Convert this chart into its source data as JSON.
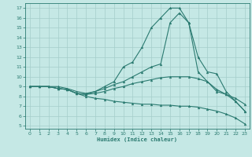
{
  "xlabel": "Humidex (Indice chaleur)",
  "bg_color": "#c5e8e5",
  "line_color": "#2a7a70",
  "grid_color": "#a5ceca",
  "xlim": [
    -0.5,
    23.5
  ],
  "ylim": [
    4.7,
    17.5
  ],
  "xticks": [
    0,
    1,
    2,
    3,
    4,
    5,
    6,
    7,
    8,
    9,
    10,
    11,
    12,
    13,
    14,
    15,
    16,
    17,
    18,
    19,
    20,
    21,
    22,
    23
  ],
  "yticks": [
    5,
    6,
    7,
    8,
    9,
    10,
    11,
    12,
    13,
    14,
    15,
    16,
    17
  ],
  "series": [
    {
      "x": [
        0,
        1,
        2,
        3,
        4,
        5,
        6,
        7,
        8,
        9,
        10,
        11,
        12,
        13,
        14,
        15,
        16,
        17,
        18,
        19,
        20,
        21,
        22,
        23
      ],
      "y": [
        9,
        9,
        9,
        9,
        8.8,
        8.5,
        8.3,
        8.5,
        9,
        9.5,
        11,
        11.5,
        13,
        15,
        16,
        17,
        17,
        15.5,
        12,
        10.5,
        10.3,
        8.5,
        7.5,
        6.5
      ]
    },
    {
      "x": [
        0,
        1,
        2,
        3,
        4,
        5,
        6,
        7,
        8,
        9,
        10,
        11,
        12,
        13,
        14,
        15,
        16,
        17,
        18,
        19,
        20,
        21,
        22,
        23
      ],
      "y": [
        9,
        9,
        9,
        8.8,
        8.7,
        8.3,
        8.2,
        8.5,
        8.8,
        9.2,
        9.5,
        10,
        10.5,
        11,
        11.3,
        15.5,
        16.5,
        15.5,
        10.5,
        9.5,
        8.7,
        8.2,
        7.5,
        6.5
      ]
    },
    {
      "x": [
        0,
        1,
        2,
        3,
        4,
        5,
        6,
        7,
        8,
        9,
        10,
        11,
        12,
        13,
        14,
        15,
        16,
        17,
        18,
        19,
        20,
        21,
        22,
        23
      ],
      "y": [
        9,
        9,
        9,
        8.8,
        8.7,
        8.3,
        8.2,
        8.3,
        8.5,
        8.8,
        9.0,
        9.3,
        9.5,
        9.7,
        9.9,
        10.0,
        10.0,
        10.0,
        9.8,
        9.5,
        8.5,
        8.2,
        7.8,
        7.2
      ]
    },
    {
      "x": [
        0,
        1,
        2,
        3,
        4,
        5,
        6,
        7,
        8,
        9,
        10,
        11,
        12,
        13,
        14,
        15,
        16,
        17,
        18,
        19,
        20,
        21,
        22,
        23
      ],
      "y": [
        9,
        9,
        9,
        8.8,
        8.7,
        8.3,
        8.0,
        7.8,
        7.7,
        7.5,
        7.4,
        7.3,
        7.2,
        7.2,
        7.1,
        7.1,
        7.0,
        7.0,
        6.9,
        6.7,
        6.5,
        6.2,
        5.8,
        5.2
      ]
    }
  ]
}
